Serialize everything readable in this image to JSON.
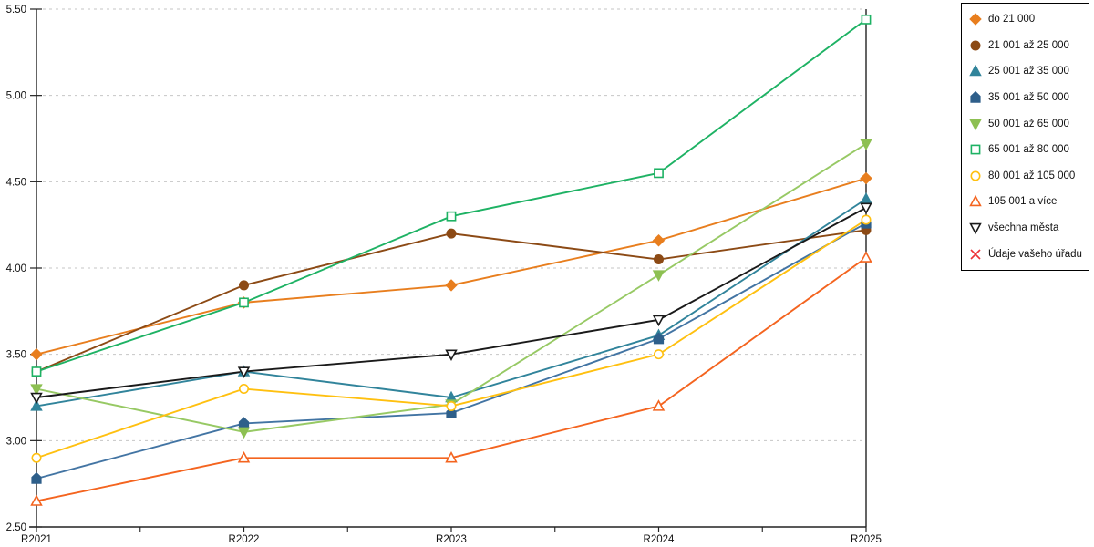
{
  "chart_data": {
    "type": "line",
    "title": "",
    "categories": [
      "R2021",
      "R2022",
      "R2023",
      "R2024",
      "R2025"
    ],
    "y_axis": {
      "min": 2.5,
      "max": 5.5,
      "step": 0.5,
      "tick_labels": [
        "2.50",
        "3.00",
        "3.50",
        "4.00",
        "4.50",
        "5.00",
        "5.50"
      ]
    },
    "grid": "horizontal-dashed",
    "legend_position": "top-right",
    "series": [
      {
        "name": "do 21 000",
        "marker": "diamond",
        "style": "filled",
        "color": "#E87E1E",
        "line_color": "#E87E1E",
        "values": [
          3.5,
          3.8,
          3.9,
          4.16,
          4.52
        ]
      },
      {
        "name": "21 001 až 25 000",
        "marker": "circle",
        "style": "filled",
        "color": "#8C4A15",
        "line_color": "#8C4A15",
        "values": [
          3.4,
          3.9,
          4.2,
          4.05,
          4.22
        ]
      },
      {
        "name": "25 001 až 35 000",
        "marker": "triangle-up",
        "style": "filled",
        "color": "#31849B",
        "line_color": "#31849B",
        "values": [
          3.2,
          3.4,
          3.25,
          3.61,
          4.4
        ]
      },
      {
        "name": "35 001 až 50 000",
        "marker": "pentagon",
        "style": "filled",
        "color": "#2E5F8A",
        "line_color": "#4274A3",
        "values": [
          2.78,
          3.1,
          3.16,
          3.59,
          4.26
        ]
      },
      {
        "name": "50 001 až 65 000",
        "marker": "triangle-down",
        "style": "filled",
        "color": "#8DC052",
        "line_color": "#97C964",
        "values": [
          3.3,
          3.05,
          3.21,
          3.96,
          4.72
        ]
      },
      {
        "name": "65 001 až 80 000",
        "marker": "square",
        "style": "open",
        "color": "#1EB264",
        "line_color": "#1EB264",
        "values": [
          3.4,
          3.8,
          4.3,
          4.55,
          5.44
        ]
      },
      {
        "name": "80 001 až 105 000",
        "marker": "circle",
        "style": "open",
        "color": "#FFC010",
        "line_color": "#FFC010",
        "values": [
          2.9,
          3.3,
          3.2,
          3.5,
          4.28
        ]
      },
      {
        "name": "105 001 a více",
        "marker": "triangle-up",
        "style": "open",
        "color": "#F4641F",
        "line_color": "#F4641F",
        "values": [
          2.65,
          2.9,
          2.9,
          3.2,
          4.06
        ]
      },
      {
        "name": "všechna města",
        "marker": "triangle-down",
        "style": "open",
        "color": "#1A1A1A",
        "line_color": "#1A1A1A",
        "values": [
          3.25,
          3.4,
          3.5,
          3.7,
          4.35
        ]
      },
      {
        "name": "Údaje vašeho úřadu",
        "marker": "x",
        "style": "open",
        "color": "#ED3237",
        "line_color": "#ED3237",
        "values": []
      }
    ]
  },
  "colors": {
    "background": "#FFFFFF",
    "grid": "#C6C6C6",
    "axis": "#222222",
    "legend_border": "#000000"
  }
}
